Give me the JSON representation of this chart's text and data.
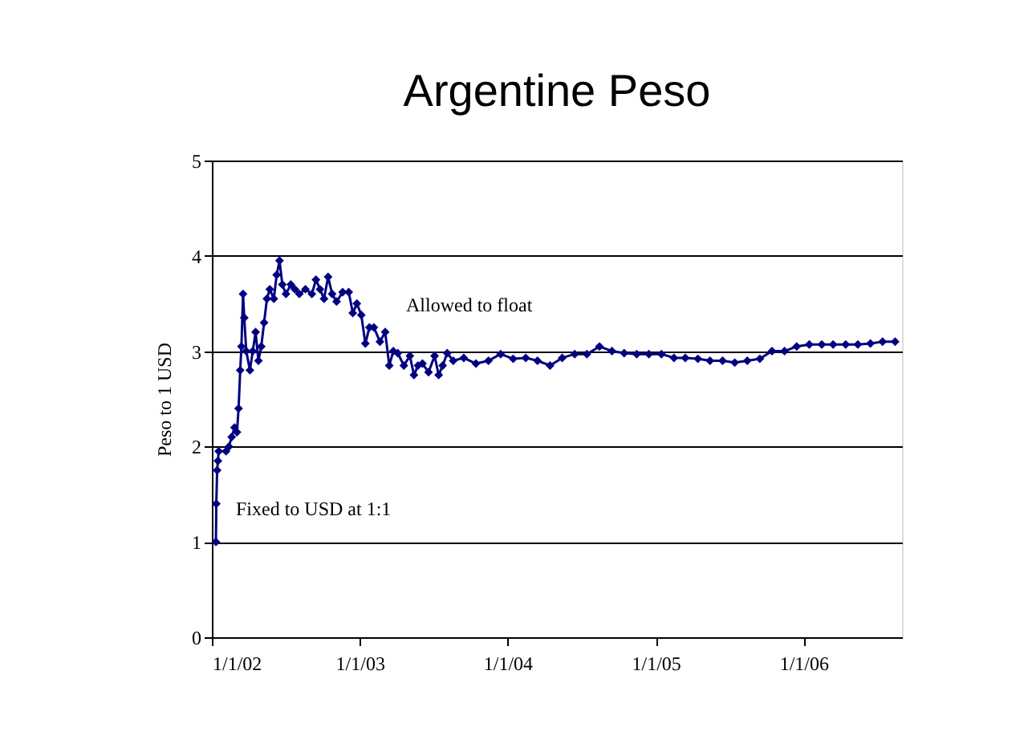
{
  "chart_data": {
    "type": "line",
    "title": "Argentine Peso",
    "ylabel": "Peso to 1 USD",
    "x": [
      "2002-01-11",
      "2002-01-12",
      "2002-01-14",
      "2002-01-16",
      "2002-01-18",
      "2002-02-05",
      "2002-02-12",
      "2002-02-19",
      "2002-02-26",
      "2002-03-04",
      "2002-03-08",
      "2002-03-12",
      "2002-03-15",
      "2002-03-19",
      "2002-03-22",
      "2002-03-27",
      "2002-04-05",
      "2002-04-12",
      "2002-04-19",
      "2002-04-26",
      "2002-05-03",
      "2002-05-10",
      "2002-05-17",
      "2002-05-24",
      "2002-06-03",
      "2002-06-10",
      "2002-06-17",
      "2002-06-24",
      "2002-07-03",
      "2002-07-15",
      "2002-07-25",
      "2002-08-05",
      "2002-08-20",
      "2002-09-05",
      "2002-09-15",
      "2002-09-25",
      "2002-10-05",
      "2002-10-15",
      "2002-10-25",
      "2002-11-05",
      "2002-11-20",
      "2002-12-05",
      "2002-12-15",
      "2002-12-25",
      "2003-01-05",
      "2003-01-15",
      "2003-01-25",
      "2003-02-05",
      "2003-02-20",
      "2003-03-05",
      "2003-03-15",
      "2003-03-25",
      "2003-04-05",
      "2003-04-20",
      "2003-05-05",
      "2003-05-15",
      "2003-05-25",
      "2003-06-05",
      "2003-06-20",
      "2003-07-05",
      "2003-07-15",
      "2003-07-25",
      "2003-08-05",
      "2003-08-20",
      "2003-09-15",
      "2003-10-15",
      "2003-11-15",
      "2003-12-15",
      "2004-01-15",
      "2004-02-15",
      "2004-03-15",
      "2004-04-15",
      "2004-05-15",
      "2004-06-15",
      "2004-07-15",
      "2004-08-15",
      "2004-09-15",
      "2004-10-15",
      "2004-11-15",
      "2004-12-15",
      "2005-01-15",
      "2005-02-15",
      "2005-03-15",
      "2005-04-15",
      "2005-05-15",
      "2005-06-15",
      "2005-07-15",
      "2005-08-15",
      "2005-09-15",
      "2005-10-15",
      "2005-11-15",
      "2005-12-15",
      "2006-01-15",
      "2006-02-15",
      "2006-03-15",
      "2006-04-15",
      "2006-05-15",
      "2006-06-15",
      "2006-07-15",
      "2006-08-15"
    ],
    "series": [
      {
        "color": "#000080",
        "values": [
          1.0,
          1.4,
          1.75,
          1.85,
          1.95,
          1.95,
          2.0,
          2.1,
          2.2,
          2.15,
          2.4,
          2.8,
          3.05,
          3.6,
          3.35,
          3.0,
          2.8,
          3.0,
          3.2,
          2.9,
          3.05,
          3.3,
          3.55,
          3.65,
          3.55,
          3.8,
          3.95,
          3.7,
          3.6,
          3.7,
          3.65,
          3.6,
          3.65,
          3.6,
          3.75,
          3.65,
          3.55,
          3.78,
          3.6,
          3.52,
          3.62,
          3.62,
          3.4,
          3.5,
          3.38,
          3.08,
          3.25,
          3.25,
          3.1,
          3.2,
          2.85,
          3.0,
          2.98,
          2.85,
          2.95,
          2.75,
          2.85,
          2.87,
          2.78,
          2.95,
          2.75,
          2.85,
          2.98,
          2.9,
          2.93,
          2.87,
          2.9,
          2.97,
          2.92,
          2.93,
          2.9,
          2.85,
          2.93,
          2.97,
          2.97,
          3.05,
          3.0,
          2.98,
          2.97,
          2.97,
          2.97,
          2.93,
          2.93,
          2.92,
          2.9,
          2.9,
          2.88,
          2.9,
          2.92,
          3.0,
          3.0,
          3.05,
          3.07,
          3.07,
          3.07,
          3.07,
          3.07,
          3.08,
          3.1,
          3.1
        ]
      }
    ],
    "xlim": [
      "2002-01-01",
      "2006-09-01"
    ],
    "xticks": [
      {
        "value": "2002-01-01",
        "label": "1/1/02"
      },
      {
        "value": "2003-01-01",
        "label": "1/1/03"
      },
      {
        "value": "2004-01-01",
        "label": "1/1/04"
      },
      {
        "value": "2005-01-01",
        "label": "1/1/05"
      },
      {
        "value": "2006-01-01",
        "label": "1/1/06"
      }
    ],
    "ylim": [
      0,
      5
    ],
    "yticks": [
      0,
      1,
      2,
      3,
      4,
      5
    ],
    "grid": "y",
    "marker": "diamond",
    "line_style": "solid",
    "legend": false,
    "annotations": [
      "Allowed to float",
      "Fixed to USD at 1:1"
    ]
  }
}
